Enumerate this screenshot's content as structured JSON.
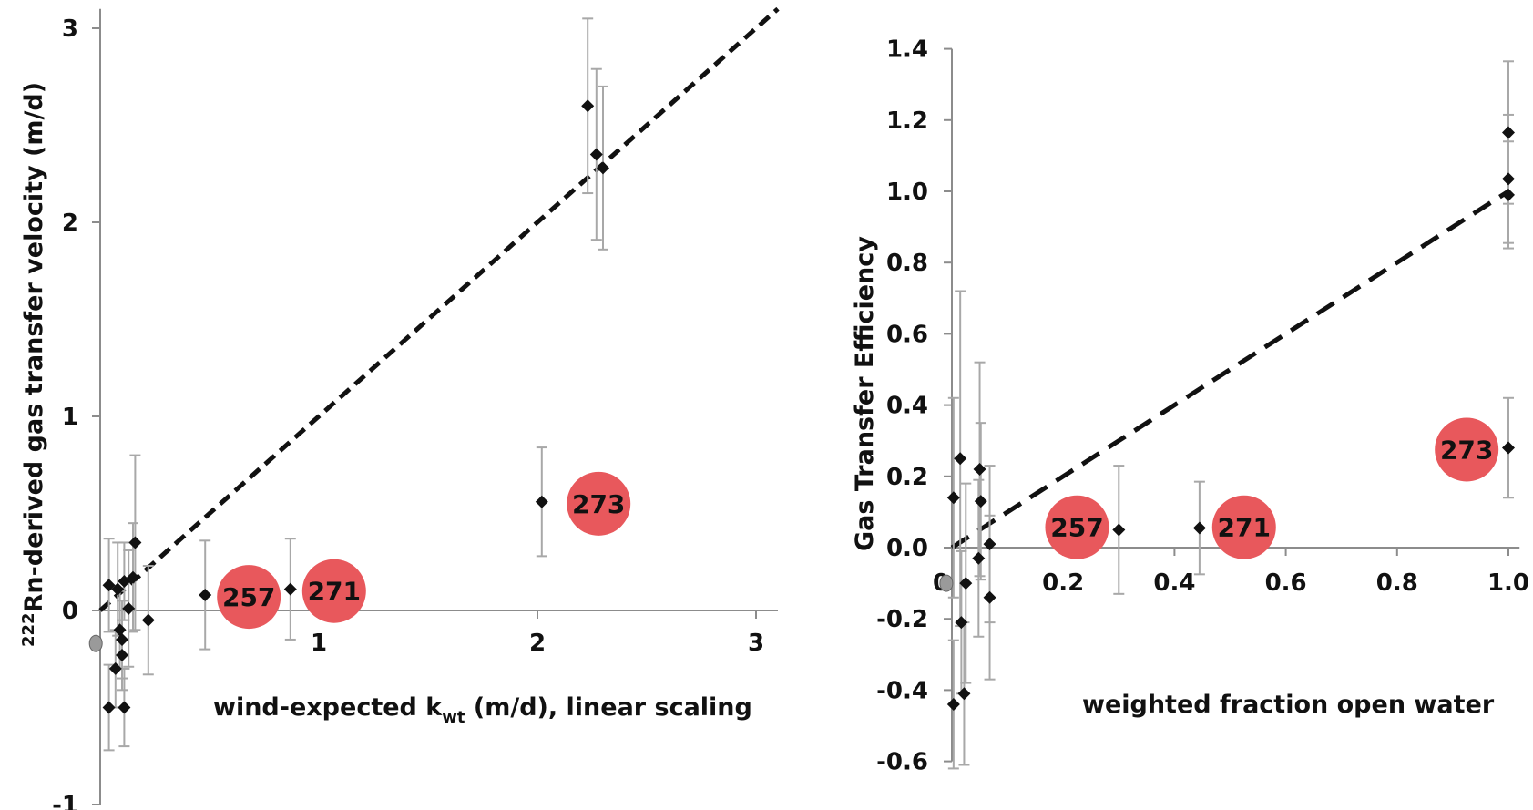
{
  "chart_data": [
    {
      "type": "scatter",
      "xlabel": "wind-expected k",
      "xlabel_sub": "wt",
      "xlabel_tail": " (m/d), linear scaling",
      "ylabel_sup": "222",
      "ylabel": "Rn-derived gas transfer velocity (m/d)",
      "xlim": [
        0,
        3.1
      ],
      "ylim": [
        -1,
        3.1
      ],
      "xticks": [
        "1",
        "2",
        "3"
      ],
      "yticks": [
        "3",
        "2",
        "1",
        "0",
        "-1"
      ],
      "grid": false,
      "points": [
        {
          "x": 0.04,
          "y": 0.13,
          "err": 0.24
        },
        {
          "x": 0.04,
          "y": -0.5,
          "err": 0.22
        },
        {
          "x": 0.07,
          "y": -0.3,
          "err": 0.2
        },
        {
          "x": 0.08,
          "y": 0.11,
          "err": 0.24
        },
        {
          "x": 0.09,
          "y": -0.1,
          "err": 0.2
        },
        {
          "x": 0.1,
          "y": -0.23,
          "err": 0.18
        },
        {
          "x": 0.11,
          "y": 0.15,
          "err": 0.2
        },
        {
          "x": 0.1,
          "y": -0.15,
          "err": 0.2
        },
        {
          "x": 0.11,
          "y": -0.5,
          "err": 0.2
        },
        {
          "x": 0.13,
          "y": 0.01,
          "err": 0.3
        },
        {
          "x": 0.15,
          "y": 0.17,
          "err": 0.28
        },
        {
          "x": 0.16,
          "y": 0.35,
          "err": 0.45
        },
        {
          "x": 0.22,
          "y": -0.05,
          "err": 0.28
        },
        {
          "x": 0.48,
          "y": 0.08,
          "err": 0.28
        },
        {
          "x": 0.87,
          "y": 0.11,
          "err": 0.26
        },
        {
          "x": 2.02,
          "y": 0.56,
          "err": 0.28
        },
        {
          "x": 2.23,
          "y": 2.6,
          "err": 0.45
        },
        {
          "x": 2.27,
          "y": 2.35,
          "err": 0.44
        },
        {
          "x": 2.3,
          "y": 2.28,
          "err": 0.42
        }
      ],
      "grey_point": {
        "x": -0.02,
        "y": -0.17
      },
      "fit_line": {
        "x0": 0.0,
        "y0": 0.0,
        "x1": 3.1,
        "y1": 3.1
      },
      "annotations": [
        {
          "label": "257",
          "x": 0.68,
          "y": 0.07
        },
        {
          "label": "271",
          "x": 1.07,
          "y": 0.1
        },
        {
          "label": "273",
          "x": 2.28,
          "y": 0.55
        }
      ],
      "colors": {
        "bubble": "#e8585c",
        "marker": "#111111",
        "errorbar": "#a8a8a8",
        "axis": "#8c8c8c",
        "grey_point": "#9a9a9a"
      }
    },
    {
      "type": "scatter",
      "xlabel": "weighted fraction open water",
      "ylabel": "Gas Transfer Efficiency",
      "xlim": [
        0,
        1.0
      ],
      "ylim": [
        -0.6,
        1.4
      ],
      "xticks": [
        "0.2",
        "0.4",
        "0.6",
        "0.8",
        "1.0"
      ],
      "x0_label": "0",
      "yticks": [
        "1.4",
        "1.2",
        "1.0",
        "0.8",
        "0.6",
        "0.4",
        "0.2",
        "0.0",
        "-0.2",
        "-0.4",
        "-0.6"
      ],
      "grid": false,
      "points": [
        {
          "x": 0.003,
          "y": 0.14,
          "err": 0.28
        },
        {
          "x": 0.003,
          "y": -0.44,
          "err": 0.18
        },
        {
          "x": 0.015,
          "y": 0.25,
          "err": 0.47
        },
        {
          "x": 0.017,
          "y": -0.21,
          "err": 0.2
        },
        {
          "x": 0.025,
          "y": -0.1,
          "err": 0.28
        },
        {
          "x": 0.022,
          "y": -0.41,
          "err": 0.2
        },
        {
          "x": 0.05,
          "y": 0.22,
          "err": 0.3
        },
        {
          "x": 0.052,
          "y": 0.13,
          "err": 0.22
        },
        {
          "x": 0.048,
          "y": -0.03,
          "err": 0.22
        },
        {
          "x": 0.068,
          "y": 0.01,
          "err": 0.22
        },
        {
          "x": 0.068,
          "y": -0.14,
          "err": 0.23
        },
        {
          "x": 0.3,
          "y": 0.05,
          "err": 0.18
        },
        {
          "x": 0.445,
          "y": 0.055,
          "err": 0.13
        },
        {
          "x": 1.0,
          "y": 1.165,
          "err": 0.2
        },
        {
          "x": 1.0,
          "y": 1.035,
          "err": 0.18
        },
        {
          "x": 1.0,
          "y": 0.99,
          "err": 0.15
        },
        {
          "x": 1.0,
          "y": 0.28,
          "err": 0.14
        }
      ],
      "grey_point": {
        "x": -0.01,
        "y": -0.1
      },
      "fit_line": {
        "x0": 0.0,
        "y0": 0.0,
        "x1": 1.0,
        "y1": 1.0
      },
      "annotations": [
        {
          "label": "257",
          "x": 0.225,
          "y": 0.057
        },
        {
          "label": "271",
          "x": 0.525,
          "y": 0.057
        },
        {
          "label": "273",
          "x": 0.925,
          "y": 0.275
        }
      ],
      "colors": {
        "bubble": "#e8585c",
        "marker": "#111111",
        "errorbar": "#a8a8a8",
        "axis": "#8c8c8c",
        "grey_point": "#9a9a9a"
      }
    }
  ]
}
